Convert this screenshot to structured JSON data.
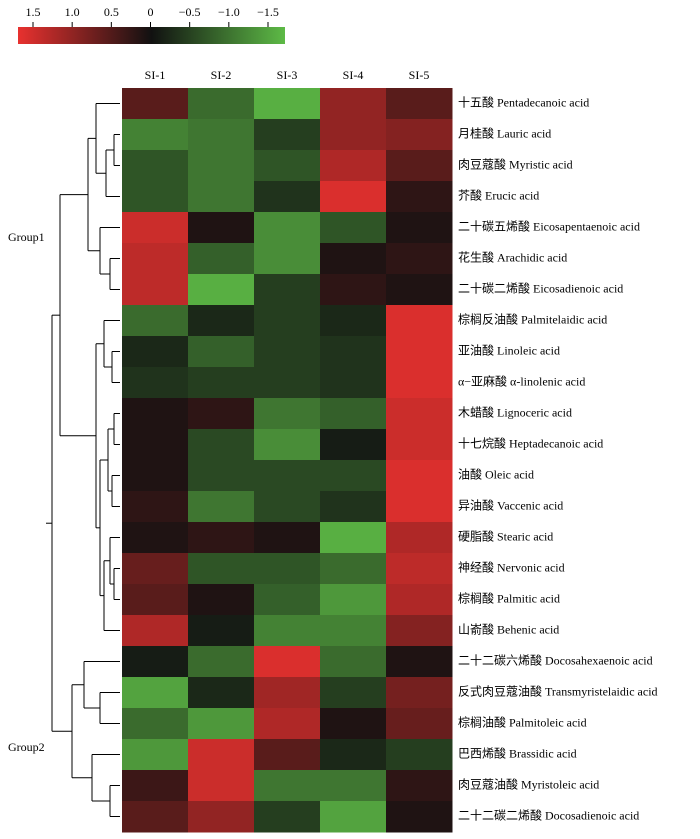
{
  "chart_data": {
    "type": "heatmap",
    "columns": [
      "SI-1",
      "SI-2",
      "SI-3",
      "SI-4",
      "SI-5"
    ],
    "rows": [
      "十五酸  Pentadecanoic acid",
      "月桂酸  Lauric acid",
      "肉豆蔻酸  Myristic acid",
      "芥酸  Erucic acid",
      "二十碳五烯酸  Eicosapentaenoic acid",
      "花生酸  Arachidic acid",
      "二十碳二烯酸  Eicosadienoic acid",
      "棕榈反油酸  Palmitelaidic acid",
      "亚油酸  Linoleic acid",
      "α−亚麻酸  α-linolenic acid",
      "木蜡酸  Lignoceric acid",
      "十七烷酸  Heptadecanoic acid",
      "油酸  Oleic acid",
      "异油酸  Vaccenic acid",
      "硬脂酸  Stearic acid",
      "神经酸  Nervonic acid",
      "棕榈酸  Palmitic acid",
      "山嵛酸  Behenic acid",
      "二十二碳六烯酸  Docosahexaenoic acid",
      "反式肉豆蔻油酸  Transmyristelaidic acid",
      "棕榈油酸  Palmitoleic acid",
      "巴西烯酸  Brassidic acid",
      "肉豆蔻油酸  Myristoleic acid",
      "二十二碳二烯酸  Docosadienoic acid"
    ],
    "values": [
      [
        0.5,
        -0.8,
        -1.4,
        0.9,
        0.5
      ],
      [
        -1.0,
        -0.9,
        -0.4,
        0.9,
        0.8
      ],
      [
        -0.6,
        -0.9,
        -0.6,
        1.1,
        0.5
      ],
      [
        -0.6,
        -0.9,
        -0.3,
        1.4,
        0.2
      ],
      [
        1.3,
        0.1,
        -1.1,
        -0.6,
        0.1
      ],
      [
        1.2,
        -0.7,
        -1.1,
        0.1,
        0.2
      ],
      [
        1.2,
        -1.4,
        -0.4,
        0.2,
        0.1
      ],
      [
        -0.8,
        -0.2,
        -0.4,
        -0.2,
        1.4
      ],
      [
        -0.2,
        -0.7,
        -0.4,
        -0.3,
        1.4
      ],
      [
        -0.3,
        -0.4,
        -0.4,
        -0.3,
        1.4
      ],
      [
        0.1,
        0.2,
        -0.9,
        -0.7,
        1.3
      ],
      [
        0.1,
        -0.5,
        -1.1,
        -0.1,
        1.3
      ],
      [
        0.1,
        -0.5,
        -0.5,
        -0.5,
        1.4
      ],
      [
        0.2,
        -0.9,
        -0.5,
        -0.3,
        1.4
      ],
      [
        0.1,
        0.2,
        0.1,
        -1.4,
        1.1
      ],
      [
        0.6,
        -0.6,
        -0.6,
        -0.8,
        1.2
      ],
      [
        0.5,
        0.1,
        -0.7,
        -1.2,
        1.1
      ],
      [
        1.1,
        -0.1,
        -1.0,
        -1.0,
        0.8
      ],
      [
        -0.1,
        -0.8,
        1.4,
        -0.8,
        0.1
      ],
      [
        -1.3,
        -0.2,
        1.0,
        -0.4,
        0.7
      ],
      [
        -0.8,
        -1.2,
        1.1,
        0.1,
        0.6
      ],
      [
        -1.2,
        1.3,
        0.5,
        -0.2,
        -0.4
      ],
      [
        0.3,
        1.3,
        -0.9,
        -0.9,
        0.2
      ],
      [
        0.5,
        0.9,
        -0.4,
        -1.3,
        0.1
      ]
    ],
    "zlim": [
      -1.5,
      1.5
    ],
    "colors": [
      "#5dba46",
      "#111111",
      "#e8312f"
    ],
    "zticks": [
      1.5,
      {
        "value": 1.0,
        "label": "1.0"
      },
      0.5,
      0,
      {
        "value": -0.5,
        "label": "−0.5"
      },
      {
        "value": -1.0,
        "label": "−1.0"
      },
      {
        "value": -1.5,
        "label": "−1.5"
      }
    ],
    "annotations": [
      "Group1",
      "Group2"
    ]
  }
}
